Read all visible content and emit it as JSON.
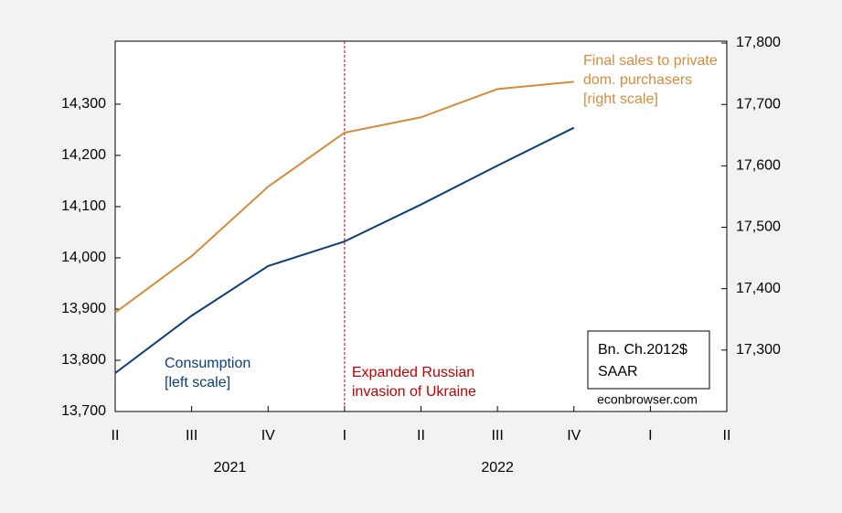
{
  "chart_data": {
    "type": "line",
    "categories": [
      "II",
      "III",
      "IV",
      "I",
      "II",
      "III",
      "IV",
      "I",
      "II"
    ],
    "years": [
      "2021",
      "2022"
    ],
    "series": [
      {
        "name_lines": [
          "Consumption",
          "[left scale]"
        ],
        "color": "#0c3d7c",
        "axis": "y",
        "values": [
          13775,
          13887,
          13984,
          14032,
          14104,
          14180,
          14254,
          null,
          null
        ]
      },
      {
        "name_lines": [
          "Final sales to private",
          "dom. purchasers",
          "[right scale]"
        ],
        "color": "#d98b3a",
        "axis": "y2",
        "values": [
          17361,
          17453,
          17566,
          17654,
          17679,
          17725,
          17737,
          null,
          null
        ]
      }
    ],
    "ylim": [
      13700,
      14423
    ],
    "yticks": [
      {
        "value": 13700,
        "label": "13,700"
      },
      {
        "value": 13800,
        "label": "13,800"
      },
      {
        "value": 13900,
        "label": "13,900"
      },
      {
        "value": 14000,
        "label": "14,000"
      },
      {
        "value": 14100,
        "label": "14,100"
      },
      {
        "value": 14200,
        "label": "14,200"
      },
      {
        "value": 14300,
        "label": "14,300"
      }
    ],
    "y2lim": [
      17200,
      17803
    ],
    "y2ticks": [
      {
        "value": 17300,
        "label": "17,300"
      },
      {
        "value": 17400,
        "label": "17,400"
      },
      {
        "value": 17500,
        "label": "17,500"
      },
      {
        "value": 17600,
        "label": "17,600"
      },
      {
        "value": 17700,
        "label": "17,700"
      },
      {
        "value": 17800,
        "label": "17,800"
      }
    ],
    "event": {
      "category_index": 3,
      "color": "#c00000",
      "label_lines": [
        "Expanded Russian",
        "invasion of Ukraine"
      ]
    },
    "units_box": [
      "Bn. Ch.2012$",
      "SAAR"
    ],
    "source": "econbrowser.com"
  }
}
